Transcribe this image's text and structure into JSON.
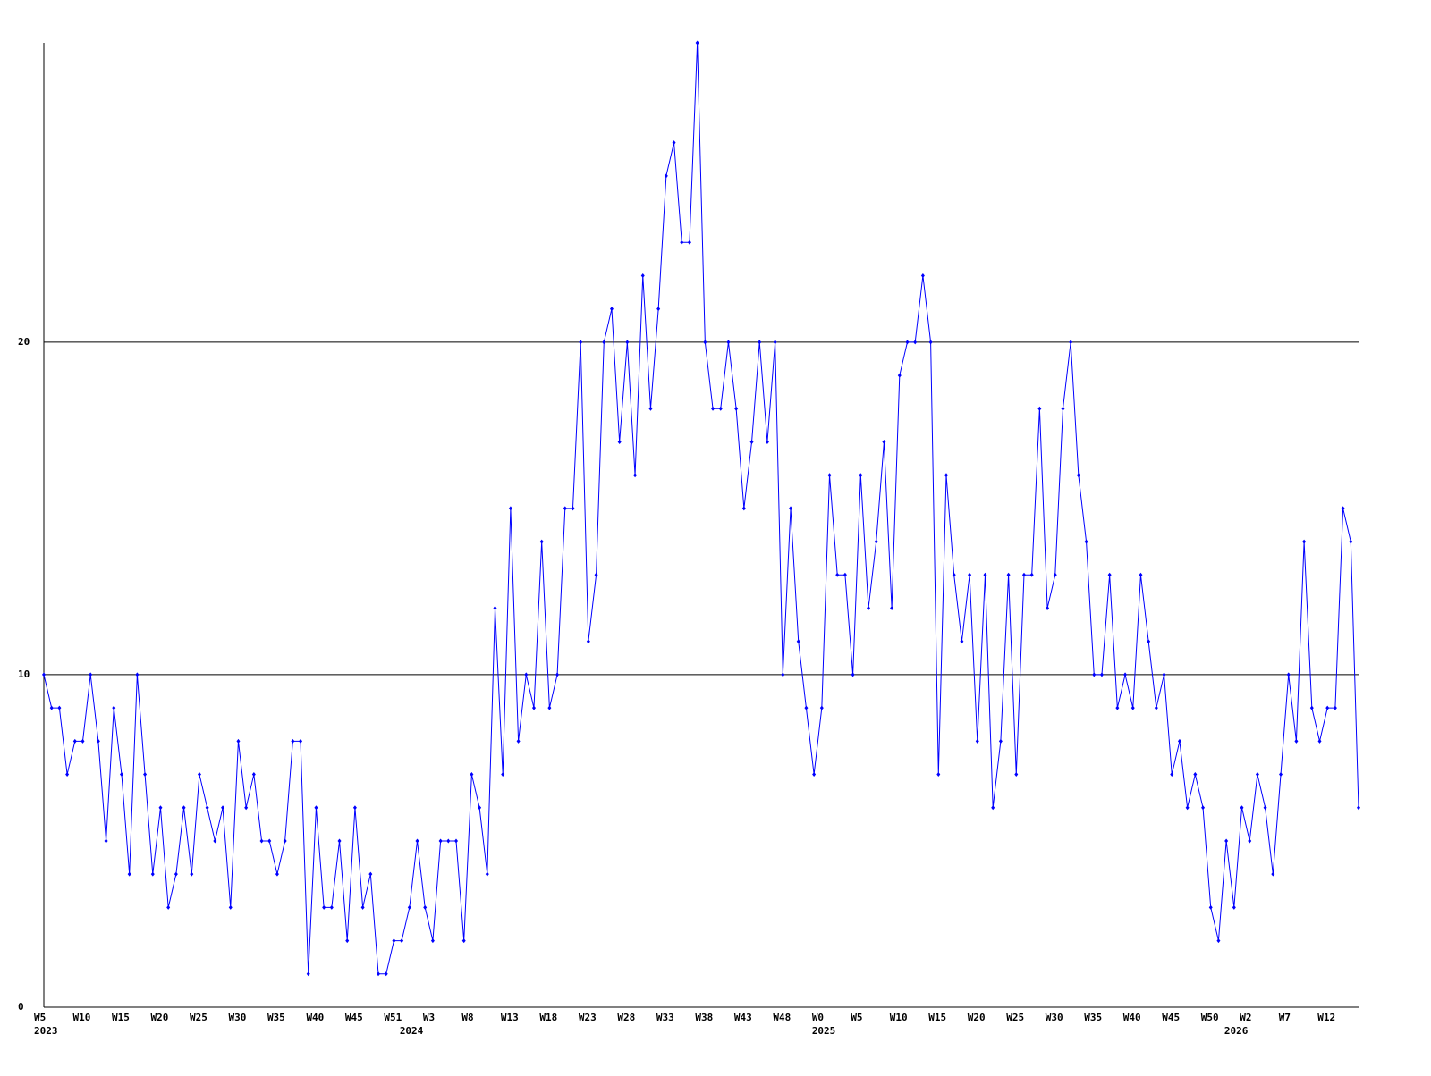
{
  "chart_data": {
    "type": "line",
    "categories": [
      "W5",
      null,
      null,
      null,
      null,
      "W10",
      null,
      null,
      null,
      null,
      "W15",
      null,
      null,
      null,
      null,
      "W20",
      null,
      null,
      null,
      null,
      "W25",
      null,
      null,
      null,
      null,
      "W30",
      null,
      null,
      null,
      null,
      "W35",
      null,
      null,
      null,
      null,
      "W40",
      null,
      null,
      null,
      null,
      "W45",
      null,
      null,
      null,
      null,
      "W51",
      null,
      null,
      null,
      null,
      "W3",
      null,
      null,
      null,
      null,
      "W8",
      null,
      null,
      null,
      null,
      "W13",
      null,
      null,
      null,
      null,
      "W18",
      null,
      null,
      null,
      null,
      "W23",
      null,
      null,
      null,
      null,
      "W28",
      null,
      null,
      null,
      null,
      "W33",
      null,
      null,
      null,
      null,
      "W38",
      null,
      null,
      null,
      null,
      "W43",
      null,
      null,
      null,
      null,
      "W48",
      null,
      null,
      null,
      null,
      "W0",
      null,
      null,
      null,
      null,
      "W5",
      null,
      null,
      null,
      null,
      "W10",
      null,
      null,
      null,
      null,
      "W15",
      null,
      null,
      null,
      null,
      "W20",
      null,
      null,
      null,
      null,
      "W25",
      null,
      null,
      null,
      null,
      "W30",
      null,
      null,
      null,
      null,
      "W35",
      null,
      null,
      null,
      null,
      "W40",
      null,
      null,
      null,
      null,
      "W45",
      null,
      null,
      null,
      null,
      "W50",
      null,
      null,
      null,
      null,
      "W2",
      null,
      null,
      null,
      null,
      "W7",
      null,
      null,
      null,
      null,
      "W12",
      null,
      null,
      null,
      null
    ],
    "years": [
      "2023",
      null,
      null,
      null,
      null,
      null,
      null,
      null,
      null,
      null,
      null,
      null,
      null,
      null,
      null,
      null,
      null,
      null,
      null,
      null,
      null,
      null,
      null,
      null,
      null,
      null,
      null,
      null,
      null,
      null,
      null,
      null,
      null,
      null,
      null,
      null,
      null,
      null,
      null,
      null,
      null,
      null,
      null,
      null,
      null,
      null,
      null,
      "2024",
      null,
      null,
      null,
      null,
      null,
      null,
      null,
      null,
      null,
      null,
      null,
      null,
      null,
      null,
      null,
      null,
      null,
      null,
      null,
      null,
      null,
      null,
      null,
      null,
      null,
      null,
      null,
      null,
      null,
      null,
      null,
      null,
      null,
      null,
      null,
      null,
      null,
      null,
      null,
      null,
      null,
      null,
      null,
      null,
      null,
      null,
      null,
      null,
      null,
      null,
      null,
      null,
      "2025",
      null,
      null,
      null,
      null,
      null,
      null,
      null,
      null,
      null,
      null,
      null,
      null,
      null,
      null,
      null,
      null,
      null,
      null,
      null,
      null,
      null,
      null,
      null,
      null,
      null,
      null,
      null,
      null,
      null,
      null,
      null,
      null,
      null,
      null,
      null,
      null,
      null,
      null,
      null,
      null,
      null,
      null,
      null,
      null,
      null,
      null,
      null,
      null,
      null,
      null,
      null,
      null,
      "2026",
      null,
      null,
      null,
      null,
      null,
      null,
      null,
      null,
      null,
      null,
      null,
      null,
      null,
      null,
      null,
      null
    ],
    "series": [
      {
        "color": "#0000ff",
        "values": [
          10,
          9,
          9,
          7,
          8,
          8,
          10,
          8,
          5,
          9,
          7,
          4,
          10,
          7,
          4,
          6,
          3,
          4,
          6,
          4,
          7,
          6,
          5,
          6,
          3,
          8,
          6,
          7,
          5,
          5,
          4,
          5,
          8,
          8,
          1,
          6,
          3,
          3,
          5,
          2,
          6,
          3,
          4,
          1,
          1,
          2,
          2,
          3,
          5,
          3,
          2,
          5,
          5,
          5,
          2,
          7,
          6,
          4,
          12,
          7,
          15,
          8,
          10,
          9,
          14,
          9,
          10,
          15,
          15,
          20,
          11,
          13,
          20,
          21,
          17,
          20,
          16,
          22,
          18,
          21,
          25,
          26,
          23,
          23,
          29,
          20,
          18,
          18,
          20,
          18,
          15,
          17,
          20,
          17,
          20,
          10,
          15,
          11,
          9,
          7,
          9,
          16,
          13,
          13,
          10,
          16,
          12,
          14,
          17,
          12,
          19,
          20,
          20,
          22,
          20,
          7,
          16,
          13,
          11,
          13,
          8,
          13,
          6,
          8,
          13,
          7,
          13,
          13,
          18,
          12,
          13,
          18,
          20,
          16,
          14,
          10,
          10,
          13,
          9,
          10,
          9,
          13,
          11,
          9,
          10,
          7,
          8,
          6,
          7,
          6,
          3,
          2,
          5,
          3,
          6,
          5,
          7,
          6,
          4,
          7,
          10,
          8,
          14,
          9,
          8,
          9,
          9,
          15,
          14,
          6
        ]
      }
    ],
    "ylim": [
      0,
      29
    ],
    "yticks": [
      0,
      10,
      20
    ],
    "grid": true
  }
}
